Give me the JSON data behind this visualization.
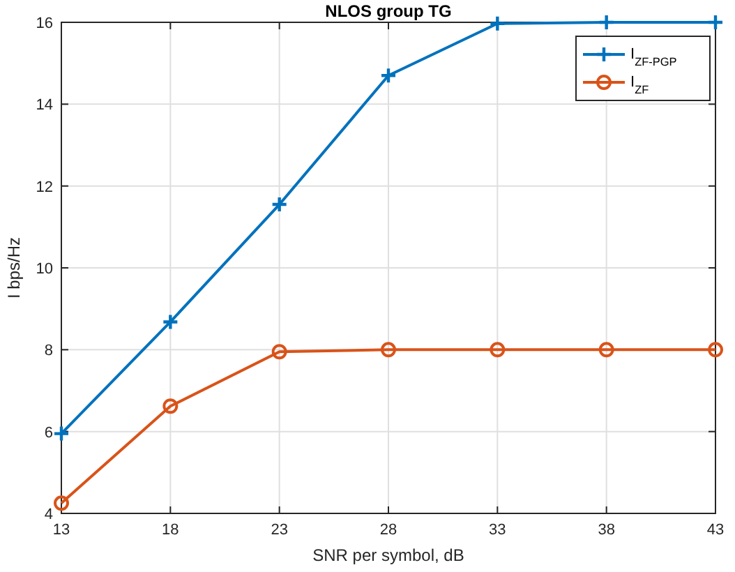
{
  "chart_data": {
    "type": "line",
    "title": "NLOS group TG",
    "xlabel": "SNR per symbol, dB",
    "ylabel": "I bps/Hz",
    "x": [
      13,
      18,
      23,
      28,
      33,
      38,
      43
    ],
    "series": [
      {
        "name": "I$_{ZF-PGP}$",
        "color": "#0072bd",
        "marker": "cross",
        "values": [
          5.95,
          8.68,
          11.55,
          14.7,
          15.97,
          16.0,
          16.0
        ]
      },
      {
        "name": "I$_{ZF}$",
        "color": "#d95319",
        "marker": "circle",
        "values": [
          4.25,
          6.62,
          7.95,
          8.0,
          8.0,
          8.0,
          8.0
        ]
      }
    ],
    "xlim": [
      13,
      43
    ],
    "xticks": [
      13,
      18,
      23,
      28,
      33,
      38,
      43
    ],
    "ylim": [
      4,
      16
    ],
    "yticks": [
      4,
      6,
      8,
      10,
      12,
      14,
      16
    ],
    "grid": true,
    "legend": "top right",
    "line_style": "solid"
  }
}
